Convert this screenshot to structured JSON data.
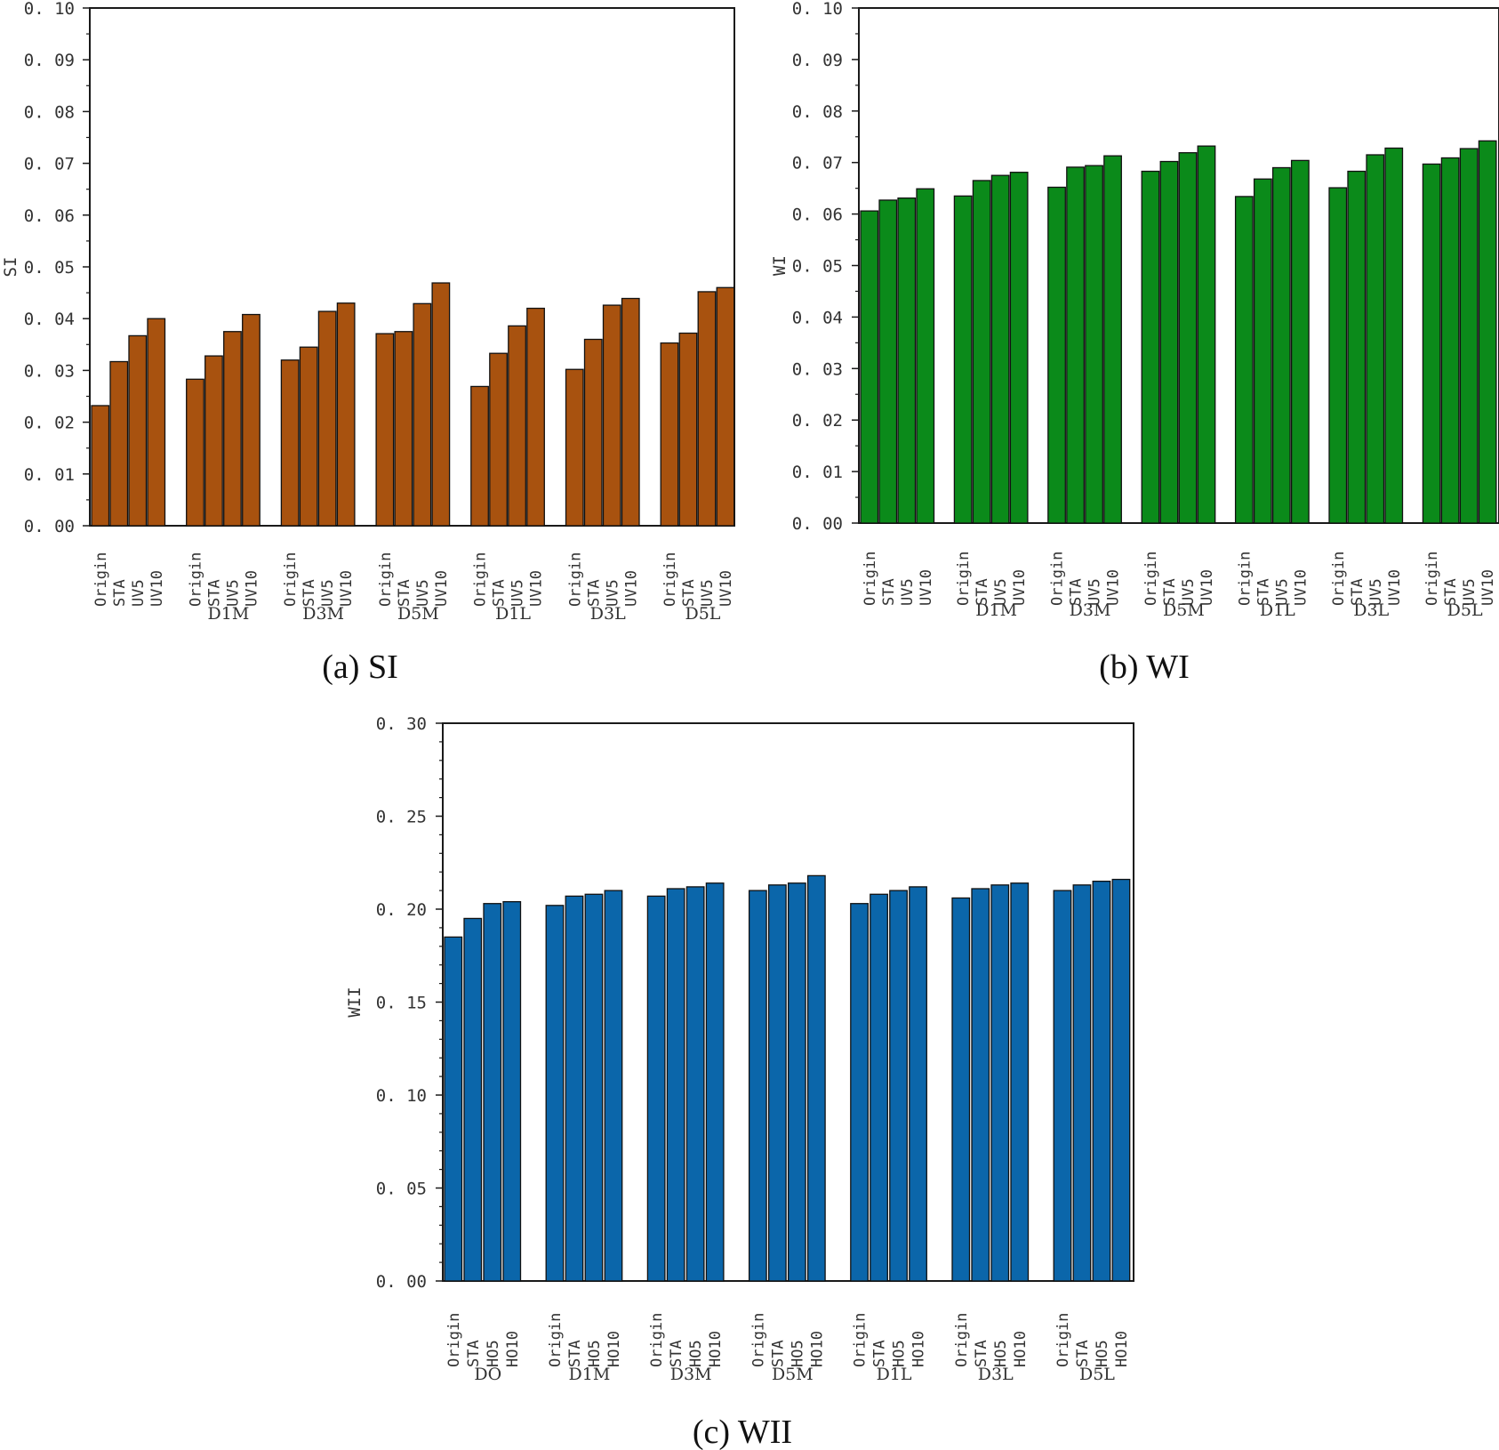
{
  "charts": [
    {
      "id": "si",
      "caption": "(a) SI",
      "ylabel": "SI",
      "color": "#A8520F",
      "ytick_labels": [
        "0. 00",
        "0. 01",
        "0. 02",
        "0. 03",
        "0. 04",
        "0. 05",
        "0. 06",
        "0. 07",
        "0. 08",
        "0. 09",
        "0. 10"
      ],
      "bar_labels": [
        "Origin",
        "STA",
        "UV5",
        "UV10"
      ],
      "group_labels": [
        "",
        "D1M",
        "D3M",
        "D5M",
        "D1L",
        "D3L",
        "D5L"
      ]
    },
    {
      "id": "wi",
      "caption": "(b) WI",
      "ylabel": "WI",
      "color": "#0B8A1A",
      "ytick_labels": [
        "0. 00",
        "0. 01",
        "0. 02",
        "0. 03",
        "0. 04",
        "0. 05",
        "0. 06",
        "0. 07",
        "0. 08",
        "0. 09",
        "0. 10"
      ],
      "bar_labels": [
        "Origin",
        "STA",
        "UV5",
        "UV10"
      ],
      "group_labels": [
        "",
        "D1M",
        "D3M",
        "D5M",
        "D1L",
        "D3L",
        "D5L"
      ]
    },
    {
      "id": "wii",
      "caption": "(c) WII",
      "ylabel": "WII",
      "color": "#0B66AA",
      "ytick_labels": [
        "0. 00",
        "0. 05",
        "0. 10",
        "0. 15",
        "0. 20",
        "0. 25",
        "0. 30"
      ],
      "bar_labels": [
        "Origin",
        "STA",
        "HO5",
        "HO10"
      ],
      "group_labels": [
        "DO",
        "D1M",
        "D3M",
        "D5M",
        "D1L",
        "D3L",
        "D5L"
      ]
    }
  ],
  "chart_data": [
    {
      "type": "bar",
      "title": "(a) SI",
      "xlabel": "",
      "ylabel": "SI",
      "ylim": [
        0,
        0.1
      ],
      "groups": [
        "",
        "D1M",
        "D3M",
        "D5M",
        "D1L",
        "D3L",
        "D5L"
      ],
      "series": [
        {
          "name": "Origin",
          "values": [
            0.0232,
            0.0283,
            0.032,
            0.0371,
            0.0269,
            0.0302,
            0.0353
          ]
        },
        {
          "name": "STA",
          "values": [
            0.0317,
            0.0328,
            0.0345,
            0.0375,
            0.0333,
            0.036,
            0.0372
          ]
        },
        {
          "name": "UV5",
          "values": [
            0.0367,
            0.0375,
            0.0414,
            0.0429,
            0.0386,
            0.0426,
            0.0452
          ]
        },
        {
          "name": "UV10",
          "values": [
            0.04,
            0.0408,
            0.043,
            0.0469,
            0.042,
            0.0439,
            0.046
          ]
        }
      ]
    },
    {
      "type": "bar",
      "title": "(b) WI",
      "xlabel": "",
      "ylabel": "WI",
      "ylim": [
        0,
        0.1
      ],
      "groups": [
        "",
        "D1M",
        "D3M",
        "D5M",
        "D1L",
        "D3L",
        "D5L"
      ],
      "series": [
        {
          "name": "Origin",
          "values": [
            0.0606,
            0.0635,
            0.0652,
            0.0683,
            0.0634,
            0.0651,
            0.0697
          ]
        },
        {
          "name": "STA",
          "values": [
            0.0627,
            0.0665,
            0.0691,
            0.0702,
            0.0668,
            0.0683,
            0.0709
          ]
        },
        {
          "name": "UV5",
          "values": [
            0.0631,
            0.0675,
            0.0694,
            0.0719,
            0.069,
            0.0715,
            0.0727
          ]
        },
        {
          "name": "UV10",
          "values": [
            0.0649,
            0.0681,
            0.0713,
            0.0732,
            0.0704,
            0.0728,
            0.0742
          ]
        }
      ]
    },
    {
      "type": "bar",
      "title": "(c) WII",
      "xlabel": "",
      "ylabel": "WII",
      "ylim": [
        0,
        0.3
      ],
      "groups": [
        "DO",
        "D1M",
        "D3M",
        "D5M",
        "D1L",
        "D3L",
        "D5L"
      ],
      "series": [
        {
          "name": "Origin",
          "values": [
            0.185,
            0.202,
            0.207,
            0.21,
            0.203,
            0.206,
            0.21
          ]
        },
        {
          "name": "STA",
          "values": [
            0.195,
            0.207,
            0.211,
            0.213,
            0.208,
            0.211,
            0.213
          ]
        },
        {
          "name": "HO5",
          "values": [
            0.203,
            0.208,
            0.212,
            0.214,
            0.21,
            0.213,
            0.215
          ]
        },
        {
          "name": "HO10",
          "values": [
            0.204,
            0.21,
            0.214,
            0.218,
            0.212,
            0.214,
            0.216
          ]
        }
      ]
    }
  ]
}
